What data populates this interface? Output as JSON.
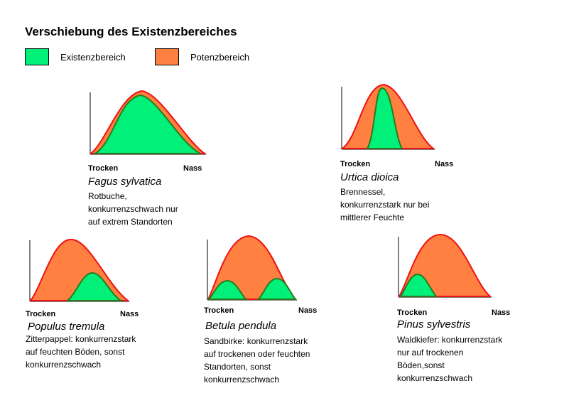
{
  "title": "Verschiebung des Existenzbereiches",
  "colors": {
    "existenz": "#00f07a",
    "potenz": "#ff8040",
    "potenz_border": "#ee1111",
    "existenz_border": "#2a7a1a"
  },
  "legend": [
    {
      "label": "Existenzbereich",
      "color": "#00f07a"
    },
    {
      "label": "Potenzbereich",
      "color": "#ff8040"
    }
  ],
  "panels": [
    {
      "id": "fagus",
      "x_left": "Trocken",
      "x_right": "Nass",
      "species": "Fagus sylvatica",
      "description": "Rotbuche,\nkonkurrenzschwach nur\nauf extrem Standorten"
    },
    {
      "id": "urtica",
      "x_left": "Trocken",
      "x_right": "Nass",
      "species": "Urtica dioica",
      "description": "Brennessel,\nkonkurrenzstark nur bei\nmittlerer Feuchte"
    },
    {
      "id": "populus",
      "x_left": "Trocken",
      "x_right": "Nass",
      "species": "Populus tremula",
      "description": "Zitterpappel: konkurrenzstark\nauf feuchten Böden, sonst\nkonkurrenzschwach"
    },
    {
      "id": "betula",
      "x_left": "Trocken",
      "x_right": "Nass",
      "species": "Betula pendula",
      "description": "Sandbirke: konkurrenzstark\nauf trockenen oder feuchten\nStandorten, sonst\nkonkurrenzschwach"
    },
    {
      "id": "pinus",
      "x_left": "Trocken",
      "x_right": "Nass",
      "species": "Pinus sylvestris",
      "description": "Waldkiefer: konkurrenzstark\nnur auf trockenen\nBöden,sonst\nkonkurrenzschwach"
    }
  ]
}
